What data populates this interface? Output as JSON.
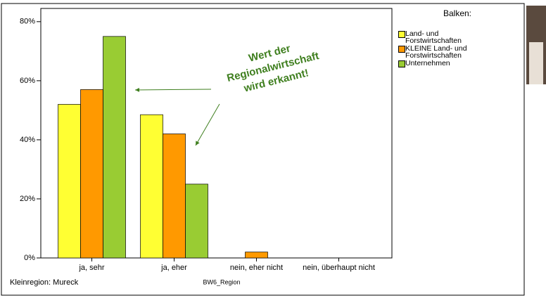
{
  "chart_data": {
    "type": "bar",
    "categories": [
      "ja, sehr",
      "ja, eher",
      "nein, eher nicht",
      "nein, überhaupt nicht"
    ],
    "series": [
      {
        "name": "Land- und Forstwirtschaften",
        "color": "#ffff33",
        "values": [
          52,
          48.5,
          0,
          0
        ]
      },
      {
        "name": "KLEINE Land- und Forstwirtschaften",
        "color": "#ff9900",
        "values": [
          57,
          42,
          2,
          0
        ]
      },
      {
        "name": "Unternehmen",
        "color": "#99cc33",
        "values": [
          75,
          25,
          0,
          0
        ]
      }
    ],
    "ylim": [
      0,
      84
    ],
    "yticks": [
      {
        "value": 0,
        "label": "0%"
      },
      {
        "value": 20,
        "label": "20%"
      },
      {
        "value": 40,
        "label": "40%"
      },
      {
        "value": 60,
        "label": "60%"
      },
      {
        "value": 80,
        "label": "80%"
      }
    ],
    "legend_title": "Balken:",
    "x_label": "BW6_Region",
    "footnote": "Kleinregion: Mureck",
    "annotation": [
      "Wert der",
      "Regionalwirtschaft",
      "wird erkannt!"
    ]
  }
}
